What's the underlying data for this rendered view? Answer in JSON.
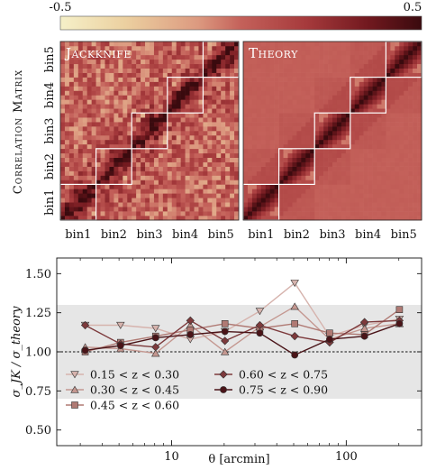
{
  "chart_data": [
    {
      "type": "heatmap",
      "colorbar": {
        "min_label": "-0.5",
        "max_label": "0.5",
        "vmin": -0.5,
        "vmax": 0.5
      },
      "ylabel": "Correlation Matrix",
      "panels": [
        {
          "title": "Jackknife",
          "noise": "high"
        },
        {
          "title": "Theory",
          "noise": "none"
        }
      ],
      "bins": [
        "bin1",
        "bin2",
        "bin3",
        "bin4",
        "bin5"
      ],
      "cells_per_bin": 8,
      "block_diagonal_correlation": "high near diagonal, decreasing off-diagonal",
      "colors": {
        "low": "#f5f0c8",
        "mid": "#c4615a",
        "high": "#3a0a0e"
      }
    },
    {
      "type": "line",
      "xlabel": "θ [arcmin]",
      "ylabel": "σ_JK / σ_theory",
      "xscale": "log",
      "xlim": [
        2.2,
        270
      ],
      "ylim": [
        0.4,
        1.6
      ],
      "xticks": [
        {
          "value": 10,
          "label": "10"
        },
        {
          "value": 100,
          "label": "100"
        }
      ],
      "yticks": [
        {
          "value": 0.5,
          "label": "0.50"
        },
        {
          "value": 0.75,
          "label": "0.75"
        },
        {
          "value": 1.0,
          "label": "1.00"
        },
        {
          "value": 1.25,
          "label": "1.25"
        },
        {
          "value": 1.5,
          "label": "1.50"
        }
      ],
      "shaded_band": [
        0.7,
        1.3
      ],
      "reference_line": 1.0,
      "x": [
        3.2,
        5.1,
        8.1,
        12.8,
        20.2,
        32.0,
        50.7,
        80.3,
        127.2,
        201.6
      ],
      "series": [
        {
          "name": "0.15 < z < 0.30",
          "marker": "triangle-down",
          "color": "#d6b3ad",
          "values": [
            1.17,
            1.17,
            1.15,
            1.08,
            1.13,
            1.26,
            1.44,
            1.1,
            1.17,
            1.21
          ]
        },
        {
          "name": "0.30 < z < 0.45",
          "marker": "triangle-up",
          "color": "#c49790",
          "values": [
            1.03,
            1.02,
            0.99,
            1.17,
            1.0,
            1.16,
            1.29,
            1.08,
            1.15,
            1.18
          ]
        },
        {
          "name": "0.45 < z < 0.60",
          "marker": "square",
          "color": "#b07a74",
          "values": [
            1.0,
            1.06,
            1.1,
            1.14,
            1.18,
            1.15,
            1.18,
            1.12,
            1.11,
            1.27
          ]
        },
        {
          "name": "0.60 < z < 0.75",
          "marker": "diamond",
          "color": "#7d3a3c",
          "values": [
            1.17,
            1.05,
            1.03,
            1.2,
            1.07,
            1.17,
            1.1,
            1.06,
            1.19,
            1.2
          ]
        },
        {
          "name": "0.75 < z < 0.90",
          "marker": "circle",
          "color": "#4a1418",
          "values": [
            1.01,
            1.04,
            1.09,
            1.11,
            1.13,
            1.12,
            0.98,
            1.08,
            1.1,
            1.18
          ]
        }
      ],
      "legend": "lower-center, two columns"
    }
  ]
}
